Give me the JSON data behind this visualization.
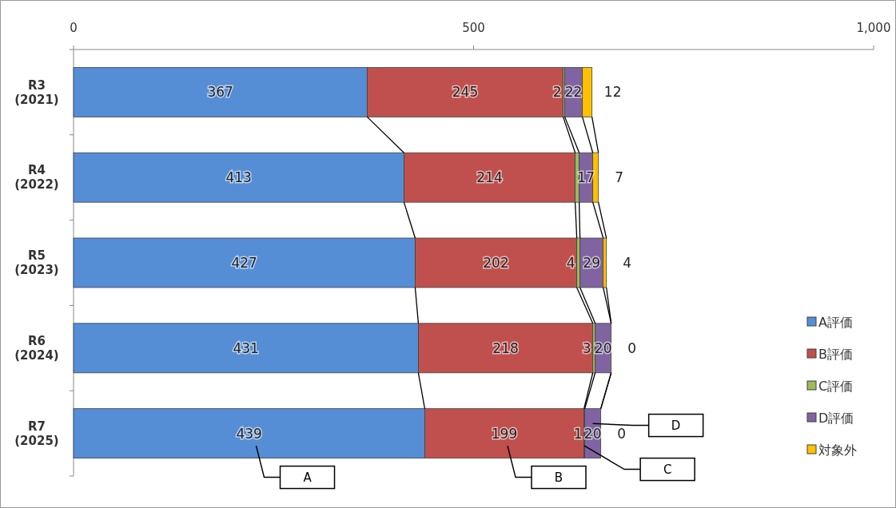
{
  "chart_data": {
    "type": "bar",
    "orientation": "horizontal",
    "stacked": true,
    "categories": [
      "R3\n(2021)",
      "R4\n(2022)",
      "R5\n(2023)",
      "R6\n(2024)",
      "R7\n(2025)"
    ],
    "series": [
      {
        "name": "A評価",
        "color": "#558ed5",
        "values": [
          367,
          413,
          427,
          431,
          439
        ],
        "value_labels": [
          "367",
          "413",
          "427",
          "431",
          "439"
        ]
      },
      {
        "name": "B評価",
        "color": "#c0504d",
        "values": [
          245,
          214,
          202,
          218,
          199
        ],
        "value_labels": [
          "245",
          "214",
          "202",
          "218",
          "199"
        ]
      },
      {
        "name": "C評価",
        "color": "#9bbb59",
        "values": [
          2,
          5,
          4,
          3,
          1
        ],
        "value_labels": [
          "2",
          null,
          "4",
          "3",
          "1"
        ]
      },
      {
        "name": "D評価",
        "color": "#8064a2",
        "values": [
          22,
          17,
          29,
          20,
          20
        ],
        "value_labels": [
          "22",
          "17",
          "29",
          "20",
          "20"
        ]
      },
      {
        "name": "対象外",
        "color": "#ffc000",
        "values": [
          12,
          7,
          4,
          0,
          0
        ],
        "value_labels": [
          "12",
          "7",
          "4",
          "0",
          "0"
        ]
      }
    ],
    "xlim": [
      0,
      1000
    ],
    "xticks": [
      0,
      500,
      {
        "value": 1000,
        "label": "1,000"
      }
    ],
    "grid": false,
    "legend": "right",
    "annotations": [
      "A",
      "B",
      "C",
      "D"
    ]
  }
}
